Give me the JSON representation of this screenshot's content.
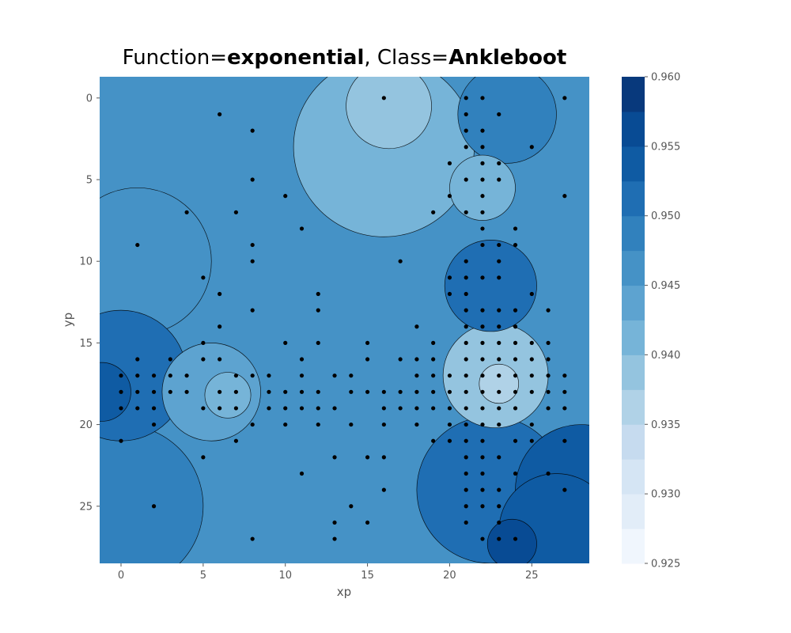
{
  "title": {
    "prefix": "Function=",
    "function_name": "exponential",
    "middle": ", Class=",
    "class_name": "Ankleboot"
  },
  "chart_data": {
    "type": "heatmap",
    "subtype": "filled-contour",
    "xlabel": "xp",
    "ylabel": "yp",
    "xlim": [
      -1.3,
      28.5
    ],
    "ylim": [
      28.5,
      -1.3
    ],
    "y_inverted": true,
    "x_ticks": [
      0,
      5,
      10,
      15,
      20,
      25
    ],
    "y_ticks": [
      0,
      5,
      10,
      15,
      20,
      25
    ],
    "grid": false,
    "colormap": "Blues",
    "colorbar": {
      "min": 0.925,
      "max": 0.96,
      "ticks": [
        0.925,
        0.93,
        0.935,
        0.94,
        0.945,
        0.95,
        0.955,
        0.96
      ],
      "tick_labels": [
        "0.925",
        "0.930",
        "0.935",
        "0.940",
        "0.945",
        "0.950",
        "0.955",
        "0.960"
      ],
      "level_colors": [
        "#f0f6fd",
        "#e2edf8",
        "#d5e5f4",
        "#c6dbef",
        "#b0d2e7",
        "#94c4df",
        "#76b4d8",
        "#5da3d0",
        "#4592c6",
        "#3181bd",
        "#1f6eb3",
        "#0f5ba3",
        "#084b94",
        "#08397c"
      ]
    },
    "field_regions": [
      {
        "x": 16.3,
        "y": 0.5,
        "value": 0.9385,
        "spread": 2.6
      },
      {
        "x": 16.0,
        "y": 3.0,
        "value": 0.9415,
        "spread": 5.5
      },
      {
        "x": 23.0,
        "y": 17.5,
        "value": 0.936,
        "spread": 1.2
      },
      {
        "x": 22.8,
        "y": 17.0,
        "value": 0.9395,
        "spread": 3.2
      },
      {
        "x": 22.0,
        "y": 5.5,
        "value": 0.941,
        "spread": 2.0
      },
      {
        "x": 6.5,
        "y": 18.2,
        "value": 0.9415,
        "spread": 1.4
      },
      {
        "x": 5.5,
        "y": 18.0,
        "value": 0.9445,
        "spread": 3.0
      },
      {
        "x": 1.0,
        "y": 10.0,
        "value": 0.9465,
        "spread": 4.5
      },
      {
        "x": -1.2,
        "y": 18.0,
        "value": 0.9535,
        "spread": 1.8
      },
      {
        "x": 0.0,
        "y": 17.0,
        "value": 0.9505,
        "spread": 4.0
      },
      {
        "x": 0.0,
        "y": 25.0,
        "value": 0.9485,
        "spread": 5.0
      },
      {
        "x": 23.8,
        "y": 27.3,
        "value": 0.957,
        "spread": 1.5
      },
      {
        "x": 26.5,
        "y": 26.5,
        "value": 0.9535,
        "spread": 3.5
      },
      {
        "x": 22.5,
        "y": 24.0,
        "value": 0.9515,
        "spread": 4.5
      },
      {
        "x": 22.5,
        "y": 11.5,
        "value": 0.9505,
        "spread": 2.8
      },
      {
        "x": 23.5,
        "y": 1.0,
        "value": 0.9495,
        "spread": 3.0
      },
      {
        "x": 28.0,
        "y": 24.0,
        "value": 0.9525,
        "spread": 4.0
      }
    ],
    "points": [
      [
        16,
        0
      ],
      [
        21,
        0
      ],
      [
        22,
        0
      ],
      [
        27,
        0
      ],
      [
        6,
        1
      ],
      [
        21,
        1
      ],
      [
        23,
        1
      ],
      [
        8,
        2
      ],
      [
        21,
        2
      ],
      [
        22,
        2
      ],
      [
        21,
        3
      ],
      [
        22,
        3
      ],
      [
        25,
        3
      ],
      [
        20,
        4
      ],
      [
        22,
        4
      ],
      [
        23,
        4
      ],
      [
        8,
        5
      ],
      [
        21,
        5
      ],
      [
        22,
        5
      ],
      [
        23,
        5
      ],
      [
        10,
        6
      ],
      [
        20,
        6
      ],
      [
        22,
        6
      ],
      [
        27,
        6
      ],
      [
        4,
        7
      ],
      [
        7,
        7
      ],
      [
        19,
        7
      ],
      [
        21,
        7
      ],
      [
        22,
        7
      ],
      [
        11,
        8
      ],
      [
        22,
        8
      ],
      [
        24,
        8
      ],
      [
        1,
        9
      ],
      [
        8,
        9
      ],
      [
        22,
        9
      ],
      [
        23,
        9
      ],
      [
        24,
        9
      ],
      [
        8,
        10
      ],
      [
        17,
        10
      ],
      [
        21,
        10
      ],
      [
        23,
        10
      ],
      [
        5,
        11
      ],
      [
        20,
        11
      ],
      [
        21,
        11
      ],
      [
        22,
        11
      ],
      [
        23,
        11
      ],
      [
        6,
        12
      ],
      [
        12,
        12
      ],
      [
        20,
        12
      ],
      [
        21,
        12
      ],
      [
        25,
        12
      ],
      [
        8,
        13
      ],
      [
        12,
        13
      ],
      [
        21,
        13
      ],
      [
        22,
        13
      ],
      [
        23,
        13
      ],
      [
        24,
        13
      ],
      [
        26,
        13
      ],
      [
        6,
        14
      ],
      [
        18,
        14
      ],
      [
        21,
        14
      ],
      [
        22,
        14
      ],
      [
        23,
        14
      ],
      [
        24,
        14
      ],
      [
        5,
        15
      ],
      [
        10,
        15
      ],
      [
        12,
        15
      ],
      [
        15,
        15
      ],
      [
        19,
        15
      ],
      [
        21,
        15
      ],
      [
        22,
        15
      ],
      [
        23,
        15
      ],
      [
        24,
        15
      ],
      [
        25,
        15
      ],
      [
        26,
        15
      ],
      [
        1,
        16
      ],
      [
        3,
        16
      ],
      [
        5,
        16
      ],
      [
        6,
        16
      ],
      [
        11,
        16
      ],
      [
        15,
        16
      ],
      [
        17,
        16
      ],
      [
        18,
        16
      ],
      [
        19,
        16
      ],
      [
        21,
        16
      ],
      [
        22,
        16
      ],
      [
        23,
        16
      ],
      [
        24,
        16
      ],
      [
        25,
        16
      ],
      [
        26,
        16
      ],
      [
        0,
        17
      ],
      [
        1,
        17
      ],
      [
        2,
        17
      ],
      [
        3,
        17
      ],
      [
        4,
        17
      ],
      [
        7,
        17
      ],
      [
        8,
        17
      ],
      [
        9,
        17
      ],
      [
        11,
        17
      ],
      [
        13,
        17
      ],
      [
        14,
        17
      ],
      [
        18,
        17
      ],
      [
        19,
        17
      ],
      [
        20,
        17
      ],
      [
        21,
        17
      ],
      [
        22,
        17
      ],
      [
        23,
        17
      ],
      [
        24,
        17
      ],
      [
        25,
        17
      ],
      [
        26,
        17
      ],
      [
        27,
        17
      ],
      [
        0,
        18
      ],
      [
        1,
        18
      ],
      [
        2,
        18
      ],
      [
        3,
        18
      ],
      [
        4,
        18
      ],
      [
        6,
        18
      ],
      [
        7,
        18
      ],
      [
        9,
        18
      ],
      [
        10,
        18
      ],
      [
        11,
        18
      ],
      [
        12,
        18
      ],
      [
        14,
        18
      ],
      [
        15,
        18
      ],
      [
        16,
        18
      ],
      [
        17,
        18
      ],
      [
        18,
        18
      ],
      [
        19,
        18
      ],
      [
        20,
        18
      ],
      [
        21,
        18
      ],
      [
        22,
        18
      ],
      [
        23,
        18
      ],
      [
        24,
        18
      ],
      [
        25,
        18
      ],
      [
        26,
        18
      ],
      [
        27,
        18
      ],
      [
        0,
        19
      ],
      [
        1,
        19
      ],
      [
        2,
        19
      ],
      [
        5,
        19
      ],
      [
        6,
        19
      ],
      [
        7,
        19
      ],
      [
        9,
        19
      ],
      [
        10,
        19
      ],
      [
        11,
        19
      ],
      [
        12,
        19
      ],
      [
        13,
        19
      ],
      [
        16,
        19
      ],
      [
        17,
        19
      ],
      [
        18,
        19
      ],
      [
        19,
        19
      ],
      [
        20,
        19
      ],
      [
        21,
        19
      ],
      [
        22,
        19
      ],
      [
        23,
        19
      ],
      [
        24,
        19
      ],
      [
        26,
        19
      ],
      [
        27,
        19
      ],
      [
        2,
        20
      ],
      [
        8,
        20
      ],
      [
        10,
        20
      ],
      [
        12,
        20
      ],
      [
        14,
        20
      ],
      [
        16,
        20
      ],
      [
        18,
        20
      ],
      [
        20,
        20
      ],
      [
        21,
        20
      ],
      [
        22,
        20
      ],
      [
        23,
        20
      ],
      [
        25,
        20
      ],
      [
        0,
        21
      ],
      [
        7,
        21
      ],
      [
        19,
        21
      ],
      [
        20,
        21
      ],
      [
        21,
        21
      ],
      [
        22,
        21
      ],
      [
        24,
        21
      ],
      [
        25,
        21
      ],
      [
        27,
        21
      ],
      [
        5,
        22
      ],
      [
        13,
        22
      ],
      [
        15,
        22
      ],
      [
        16,
        22
      ],
      [
        21,
        22
      ],
      [
        22,
        22
      ],
      [
        23,
        22
      ],
      [
        11,
        23
      ],
      [
        21,
        23
      ],
      [
        22,
        23
      ],
      [
        24,
        23
      ],
      [
        26,
        23
      ],
      [
        16,
        24
      ],
      [
        21,
        24
      ],
      [
        22,
        24
      ],
      [
        23,
        24
      ],
      [
        27,
        24
      ],
      [
        2,
        25
      ],
      [
        14,
        25
      ],
      [
        21,
        25
      ],
      [
        22,
        25
      ],
      [
        23,
        25
      ],
      [
        13,
        26
      ],
      [
        15,
        26
      ],
      [
        21,
        26
      ],
      [
        23,
        26
      ],
      [
        8,
        27
      ],
      [
        13,
        27
      ],
      [
        22,
        27
      ],
      [
        23,
        27
      ],
      [
        24,
        27
      ]
    ]
  }
}
